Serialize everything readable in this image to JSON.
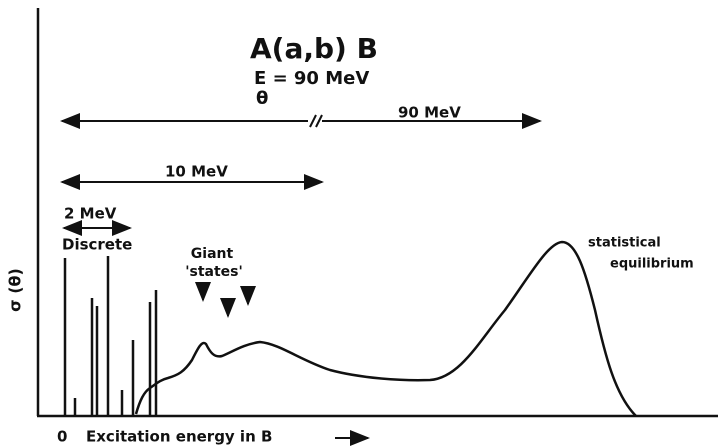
{
  "title": "A(a,b) B",
  "energy": "E = 90 MeV",
  "angle": "θ",
  "ranges": [
    "90 MeV",
    "10 MeV",
    "2 MeV"
  ],
  "labels": {
    "discrete": "Discrete",
    "giant": "Giant",
    "states": "'states'",
    "statistical": "statistical",
    "equilibrium": "equilibrium"
  },
  "y_axis": "σ (θ)",
  "x_origin": "0",
  "x_axis": "Excitation energy in B"
}
